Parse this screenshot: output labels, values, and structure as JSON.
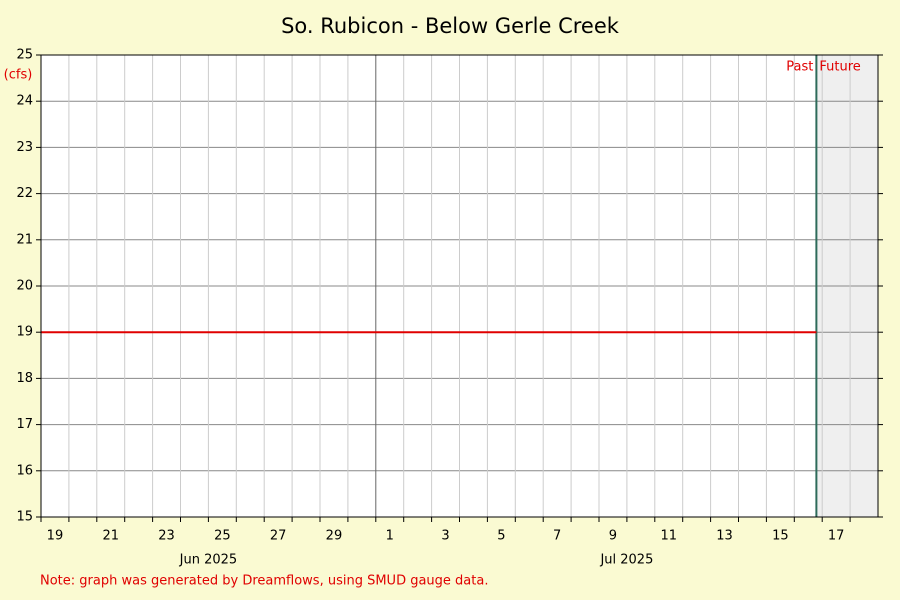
{
  "chart_data": {
    "type": "line",
    "title": "So. Rubicon - Below Gerle Creek",
    "y_label": "(cfs)",
    "note": "Note: graph was generated by Dreamflows, using SMUD gauge data.",
    "past_label": "Past",
    "future_label": "Future",
    "now": "2025-07-16T19:00",
    "xlim": [
      "2025-06-19T00:00",
      "2025-07-19T00:00"
    ],
    "xticks": [
      {
        "value": "2025-06-19T00:00",
        "label": "19"
      },
      {
        "value": "2025-06-21T00:00",
        "label": "21"
      },
      {
        "value": "2025-06-23T00:00",
        "label": "23"
      },
      {
        "value": "2025-06-25T00:00",
        "label": "25"
      },
      {
        "value": "2025-06-27T00:00",
        "label": "27"
      },
      {
        "value": "2025-06-29T00:00",
        "label": "29"
      },
      {
        "value": "2025-07-01T00:00",
        "label": "1"
      },
      {
        "value": "2025-07-03T00:00",
        "label": "3"
      },
      {
        "value": "2025-07-05T00:00",
        "label": "5"
      },
      {
        "value": "2025-07-07T00:00",
        "label": "7"
      },
      {
        "value": "2025-07-09T00:00",
        "label": "9"
      },
      {
        "value": "2025-07-11T00:00",
        "label": "11"
      },
      {
        "value": "2025-07-13T00:00",
        "label": "13"
      },
      {
        "value": "2025-07-15T00:00",
        "label": "15"
      },
      {
        "value": "2025-07-17T00:00",
        "label": "17"
      }
    ],
    "xminorticks": [
      "2025-06-20T00:00",
      "2025-06-22T00:00",
      "2025-06-24T00:00",
      "2025-06-26T00:00",
      "2025-06-28T00:00",
      "2025-06-30T00:00",
      "2025-07-02T00:00",
      "2025-07-04T00:00",
      "2025-07-06T00:00",
      "2025-07-08T00:00",
      "2025-07-10T00:00",
      "2025-07-12T00:00",
      "2025-07-14T00:00",
      "2025-07-16T00:00",
      "2025-07-18T00:00"
    ],
    "month_labels": [
      {
        "value": "2025-06-25T00:00",
        "label": "Jun 2025"
      },
      {
        "value": "2025-07-10T00:00",
        "label": "Jul 2025"
      }
    ],
    "ylim": [
      15,
      25
    ],
    "yticks": [
      15,
      16,
      17,
      18,
      19,
      20,
      21,
      22,
      23,
      24,
      25
    ],
    "grid": true,
    "series": [
      {
        "color": "#e00000",
        "x": [
          "2025-06-19T00:00",
          "2025-07-16T19:00"
        ],
        "values": [
          19,
          19
        ]
      }
    ]
  }
}
